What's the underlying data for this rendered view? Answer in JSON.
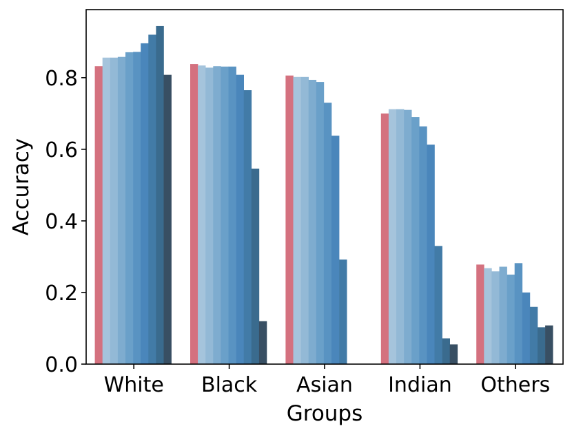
{
  "chart_data": {
    "type": "bar",
    "xlabel": "Groups",
    "ylabel": "Accuracy",
    "categories": [
      "White",
      "Black",
      "Asian",
      "Indian",
      "Others"
    ],
    "ylim": [
      0,
      0.99
    ],
    "yticks": [
      0.0,
      0.2,
      0.4,
      0.6,
      0.8
    ],
    "ytick_labels": [
      "0.0",
      "0.2",
      "0.4",
      "0.6",
      "0.8"
    ],
    "grid": false,
    "legend": "none",
    "bar_colors": [
      "#d4717f",
      "#a5c4dc",
      "#93b9d6",
      "#7eaccf",
      "#6aa0c9",
      "#5993c2",
      "#4a86bb",
      "#427ba7",
      "#3a6b8e",
      "#384f63",
      "#36444f"
    ],
    "series": [
      {
        "values": [
          0.832,
          0.838,
          0.806,
          0.7,
          0.278
        ]
      },
      {
        "values": [
          0.856,
          0.834,
          0.802,
          0.712,
          0.268
        ]
      },
      {
        "values": [
          0.856,
          0.828,
          0.802,
          0.712,
          0.259
        ]
      },
      {
        "values": [
          0.858,
          0.832,
          0.794,
          0.71,
          0.272
        ]
      },
      {
        "values": [
          0.871,
          0.831,
          0.788,
          0.69,
          0.25
        ]
      },
      {
        "values": [
          0.872,
          0.831,
          0.73,
          0.664,
          0.282
        ]
      },
      {
        "values": [
          0.896,
          0.808,
          0.638,
          0.613,
          0.2
        ]
      },
      {
        "values": [
          0.92,
          0.765,
          0.292,
          0.33,
          0.16
        ]
      },
      {
        "values": [
          0.944,
          0.546,
          0.0,
          0.072,
          0.103
        ]
      },
      {
        "values": [
          0.808,
          0.12,
          0.0,
          0.055,
          0.108
        ]
      }
    ]
  }
}
